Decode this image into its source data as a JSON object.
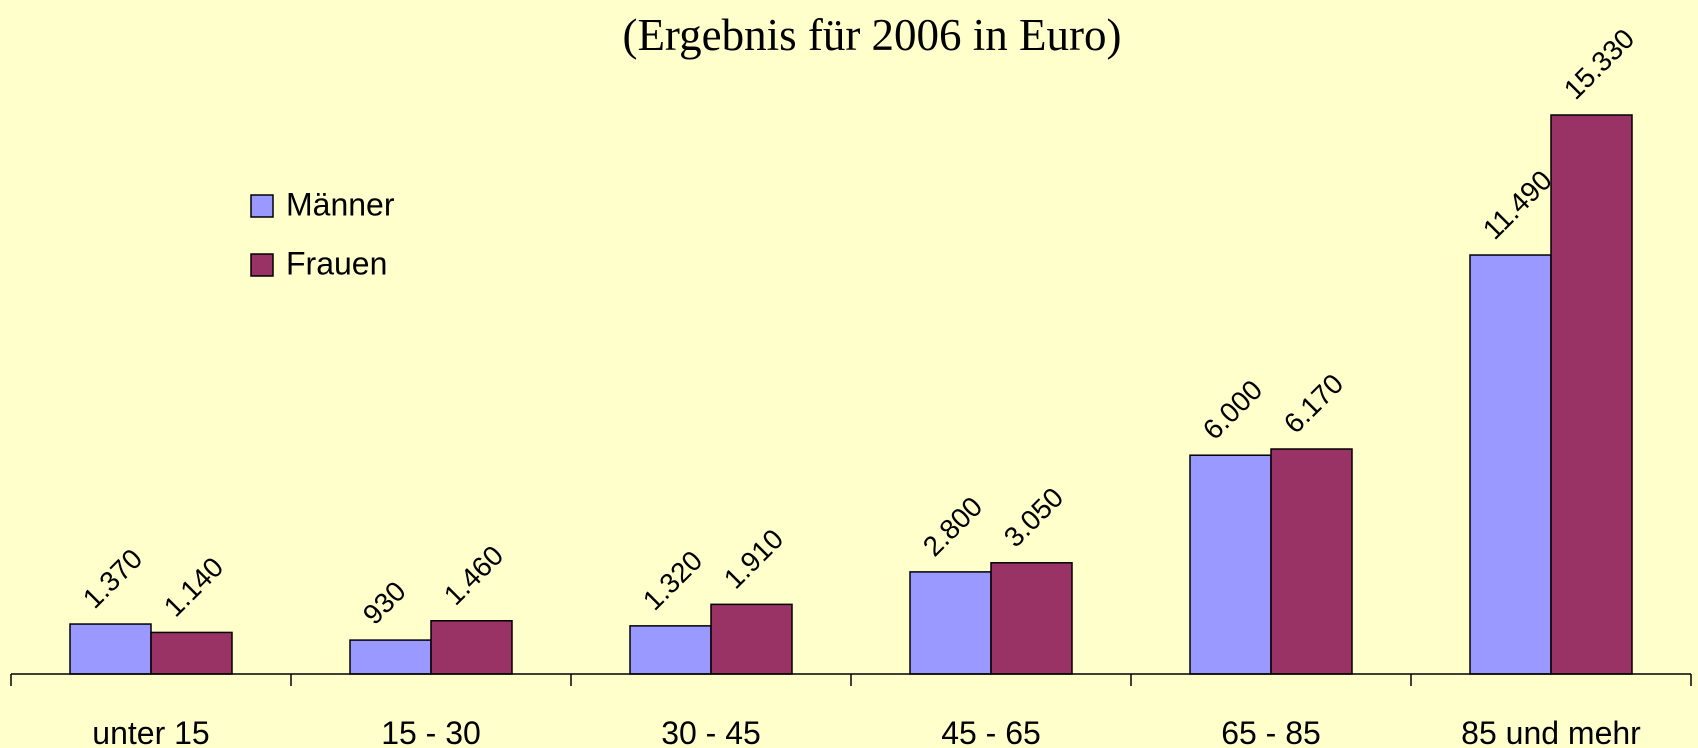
{
  "chart_data": {
    "type": "bar",
    "title": "(Ergebnis für 2006 in Euro)",
    "categories": [
      "unter 15",
      "15 - 30",
      "30 - 45",
      "45 - 65",
      "65 - 85",
      "85 und mehr"
    ],
    "series": [
      {
        "name": "Männer",
        "color": "#9999ff",
        "values": [
          1370,
          930,
          1320,
          2800,
          6000,
          11490
        ],
        "value_labels": [
          "1.370",
          "930",
          "1.320",
          "2.800",
          "6.000",
          "11.490"
        ]
      },
      {
        "name": "Frauen",
        "color": "#993366",
        "values": [
          1140,
          1460,
          1910,
          3050,
          6170,
          15330
        ],
        "value_labels": [
          "1.140",
          "1.460",
          "1.910",
          "3.050",
          "6.170",
          "15.330"
        ]
      }
    ],
    "legend": "upper left"
  }
}
